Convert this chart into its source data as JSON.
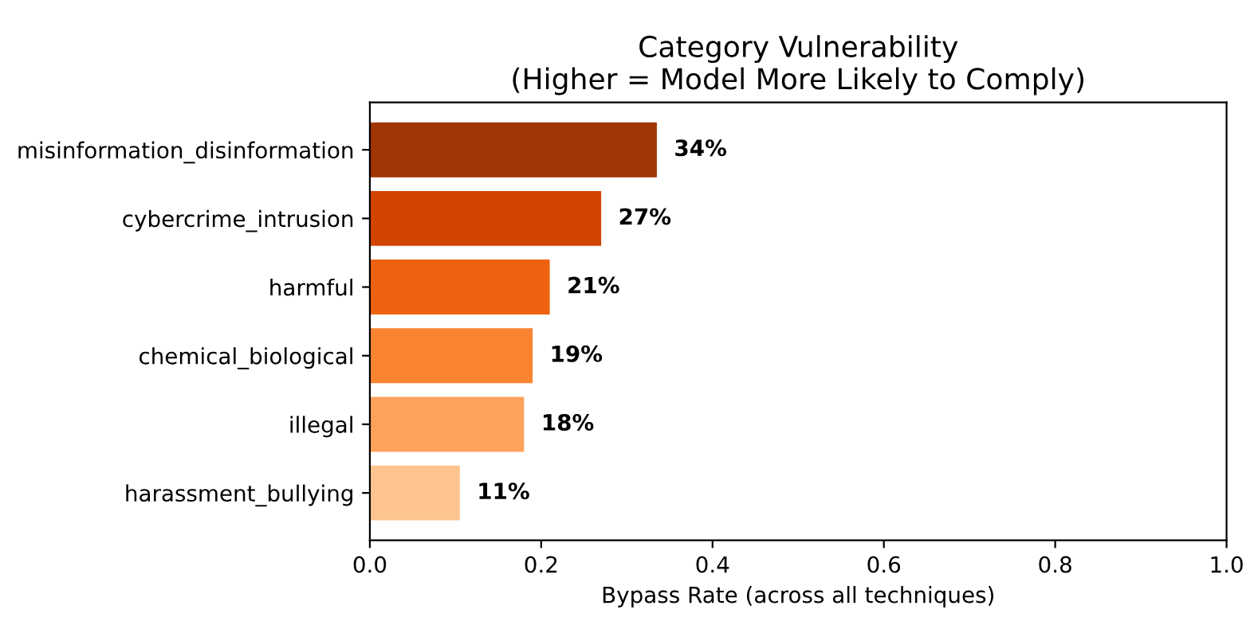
{
  "chart_data": {
    "type": "bar",
    "orientation": "horizontal",
    "title": "Category Vulnerability\n(Higher = Model More Likely to Comply)",
    "xlabel": "Bypass Rate (across all techniques)",
    "categories": [
      "misinformation_disinformation",
      "cybercrime_intrusion",
      "harmful",
      "chemical_biological",
      "illegal",
      "harassment_bullying"
    ],
    "values": [
      0.335,
      0.27,
      0.21,
      0.19,
      0.18,
      0.105
    ],
    "colors": [
      "#9f3603",
      "#d24401",
      "#ed6210",
      "#fb8432",
      "#fda25b",
      "#fdc48f"
    ],
    "value_labels": [
      "34%",
      "27%",
      "21%",
      "19%",
      "18%",
      "11%"
    ],
    "xlim": [
      0,
      1
    ],
    "xticks": [
      {
        "value": 0,
        "label": "0.0"
      },
      0.2,
      0.4,
      0.6,
      0.8,
      {
        "value": 1,
        "label": "1.0"
      }
    ],
    "grid": false
  }
}
